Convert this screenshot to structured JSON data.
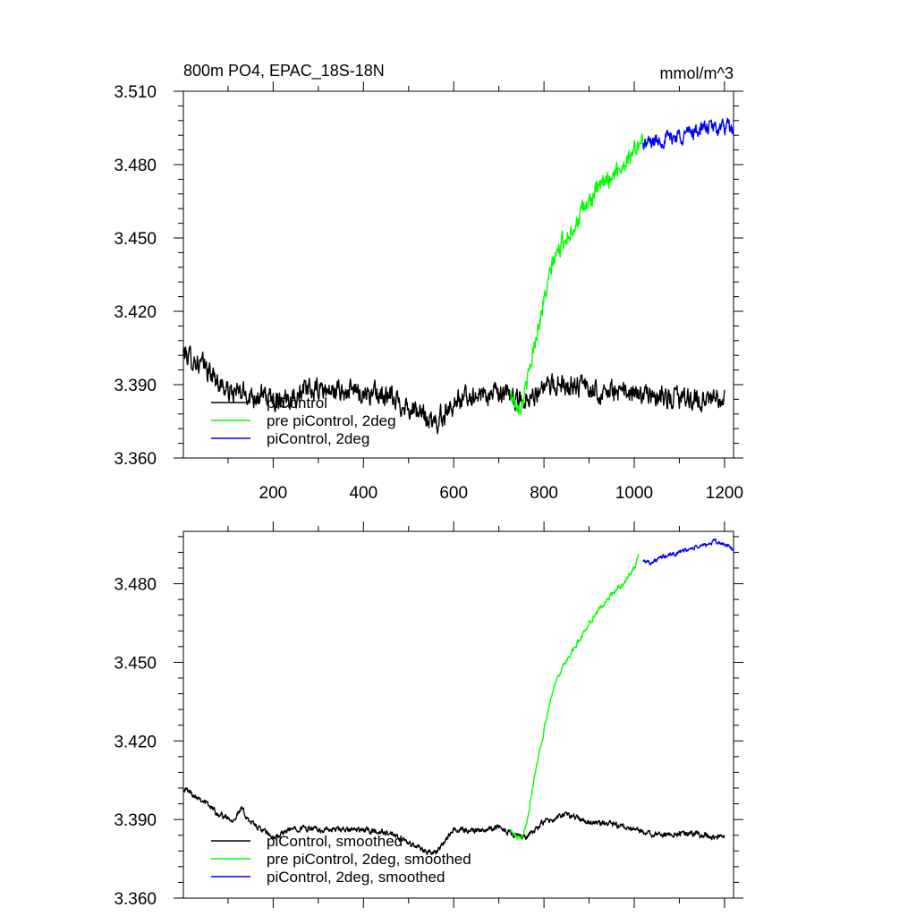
{
  "chart_data": [
    {
      "type": "line",
      "title": "800m PO4, EPAC_18S-18N",
      "units": "mmol/m^3",
      "xlim": [
        1,
        1220
      ],
      "ylim": [
        3.36,
        3.51
      ],
      "xticks": [
        200,
        400,
        600,
        800,
        1000,
        1200
      ],
      "yticks": [
        3.36,
        3.39,
        3.42,
        3.45,
        3.48,
        3.51
      ],
      "ytick_labels": [
        "3.360",
        "3.390",
        "3.420",
        "3.450",
        "3.480",
        "3.510"
      ],
      "series": [
        {
          "name": "piControl",
          "color": "#000000",
          "noise": 0.0035,
          "points": [
            [
              1,
              3.403
            ],
            [
              50,
              3.397
            ],
            [
              100,
              3.387
            ],
            [
              150,
              3.386
            ],
            [
              200,
              3.384
            ],
            [
              250,
              3.386
            ],
            [
              300,
              3.388
            ],
            [
              350,
              3.387
            ],
            [
              400,
              3.387
            ],
            [
              450,
              3.385
            ],
            [
              500,
              3.381
            ],
            [
              540,
              3.376
            ],
            [
              560,
              3.374
            ],
            [
              600,
              3.383
            ],
            [
              650,
              3.386
            ],
            [
              700,
              3.386
            ],
            [
              720,
              3.385
            ],
            [
              750,
              3.384
            ],
            [
              800,
              3.388
            ],
            [
              850,
              3.391
            ],
            [
              900,
              3.388
            ],
            [
              950,
              3.387
            ],
            [
              1000,
              3.386
            ],
            [
              1050,
              3.385
            ],
            [
              1100,
              3.384
            ],
            [
              1150,
              3.384
            ],
            [
              1200,
              3.383
            ]
          ]
        },
        {
          "name": "pre piControl, 2deg",
          "color": "#00ff00",
          "noise": 0.003,
          "points": [
            [
              725,
              3.386
            ],
            [
              740,
              3.383
            ],
            [
              750,
              3.382
            ],
            [
              765,
              3.392
            ],
            [
              780,
              3.408
            ],
            [
              800,
              3.424
            ],
            [
              820,
              3.44
            ],
            [
              840,
              3.448
            ],
            [
              870,
              3.456
            ],
            [
              900,
              3.465
            ],
            [
              940,
              3.474
            ],
            [
              980,
              3.481
            ],
            [
              1000,
              3.486
            ],
            [
              1020,
              3.489
            ]
          ]
        },
        {
          "name": "piControl, 2deg",
          "color": "#0000ff",
          "noise": 0.0025,
          "points": [
            [
              1020,
              3.488
            ],
            [
              1050,
              3.49
            ],
            [
              1080,
              3.491
            ],
            [
              1120,
              3.493
            ],
            [
              1160,
              3.495
            ],
            [
              1200,
              3.495
            ],
            [
              1220,
              3.494
            ]
          ]
        }
      ]
    },
    {
      "type": "line",
      "xlim": [
        1,
        1220
      ],
      "ylim": [
        3.36,
        3.5
      ],
      "xticks": [
        200,
        400,
        600,
        800,
        1000,
        1200
      ],
      "yticks": [
        3.36,
        3.39,
        3.42,
        3.45,
        3.48
      ],
      "ytick_labels": [
        "3.360",
        "3.390",
        "3.420",
        "3.450",
        "3.480"
      ],
      "series": [
        {
          "name": "piControl, smoothed",
          "color": "#000000",
          "noise": 0.0009,
          "points": [
            [
              1,
              3.402
            ],
            [
              40,
              3.398
            ],
            [
              80,
              3.392
            ],
            [
              110,
              3.39
            ],
            [
              130,
              3.394
            ],
            [
              150,
              3.389
            ],
            [
              200,
              3.383
            ],
            [
              250,
              3.387
            ],
            [
              300,
              3.386
            ],
            [
              350,
              3.386
            ],
            [
              400,
              3.386
            ],
            [
              450,
              3.385
            ],
            [
              500,
              3.381
            ],
            [
              540,
              3.378
            ],
            [
              560,
              3.377
            ],
            [
              600,
              3.386
            ],
            [
              650,
              3.386
            ],
            [
              700,
              3.387
            ],
            [
              740,
              3.384
            ],
            [
              760,
              3.383
            ],
            [
              800,
              3.389
            ],
            [
              850,
              3.392
            ],
            [
              900,
              3.389
            ],
            [
              950,
              3.388
            ],
            [
              1000,
              3.386
            ],
            [
              1050,
              3.384
            ],
            [
              1100,
              3.385
            ],
            [
              1150,
              3.384
            ],
            [
              1200,
              3.383
            ]
          ]
        },
        {
          "name": "pre piControl, 2deg, smoothed",
          "color": "#00ff00",
          "noise": 0.0008,
          "points": [
            [
              725,
              3.386
            ],
            [
              740,
              3.383
            ],
            [
              750,
              3.382
            ],
            [
              765,
              3.392
            ],
            [
              780,
              3.408
            ],
            [
              800,
              3.424
            ],
            [
              820,
              3.44
            ],
            [
              840,
              3.448
            ],
            [
              870,
              3.456
            ],
            [
              900,
              3.465
            ],
            [
              940,
              3.474
            ],
            [
              980,
              3.481
            ],
            [
              1000,
              3.486
            ],
            [
              1010,
              3.49
            ]
          ]
        },
        {
          "name": "piControl, 2deg, smoothed",
          "color": "#0000ff",
          "noise": 0.0007,
          "points": [
            [
              1020,
              3.489
            ],
            [
              1040,
              3.488
            ],
            [
              1060,
              3.49
            ],
            [
              1080,
              3.491
            ],
            [
              1100,
              3.492
            ],
            [
              1120,
              3.493
            ],
            [
              1140,
              3.494
            ],
            [
              1160,
              3.495
            ],
            [
              1180,
              3.496
            ],
            [
              1200,
              3.495
            ],
            [
              1220,
              3.493
            ]
          ]
        }
      ]
    }
  ]
}
